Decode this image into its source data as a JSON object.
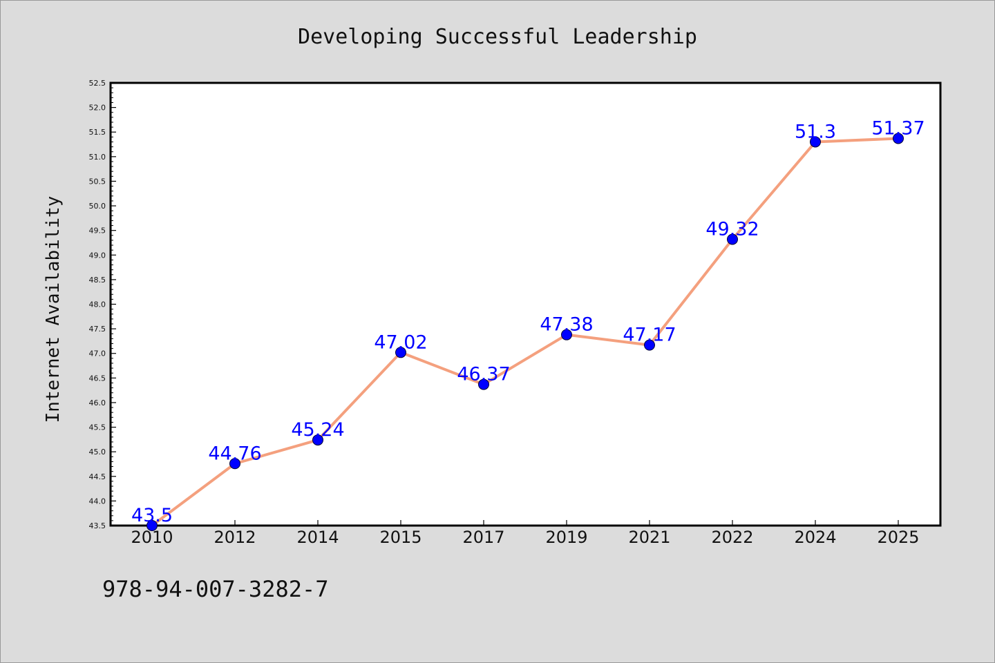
{
  "chart_data": {
    "type": "line",
    "title": "Developing Successful Leadership",
    "ylabel": "Internet Availability",
    "xlabel": "",
    "categories": [
      "2010",
      "2012",
      "2014",
      "2015",
      "2017",
      "2019",
      "2021",
      "2022",
      "2024",
      "2025"
    ],
    "series": [
      {
        "values": [
          43.5,
          44.76,
          45.24,
          47.02,
          46.37,
          47.38,
          47.17,
          49.32,
          51.3,
          51.37
        ],
        "labels": [
          "43.5",
          "44.76",
          "45.24",
          "47.02",
          "46.37",
          "47.38",
          "47.17",
          "49.32",
          "51.3",
          "51.37"
        ]
      }
    ],
    "ylim": [
      43.5,
      52.5
    ],
    "ytick_step": 0.5,
    "grid": false,
    "line_color": "#f4a07e",
    "marker_color": "#0000ff",
    "label_color": "#0000ff"
  },
  "footer": {
    "isbn": "978-94-007-3282-7"
  }
}
